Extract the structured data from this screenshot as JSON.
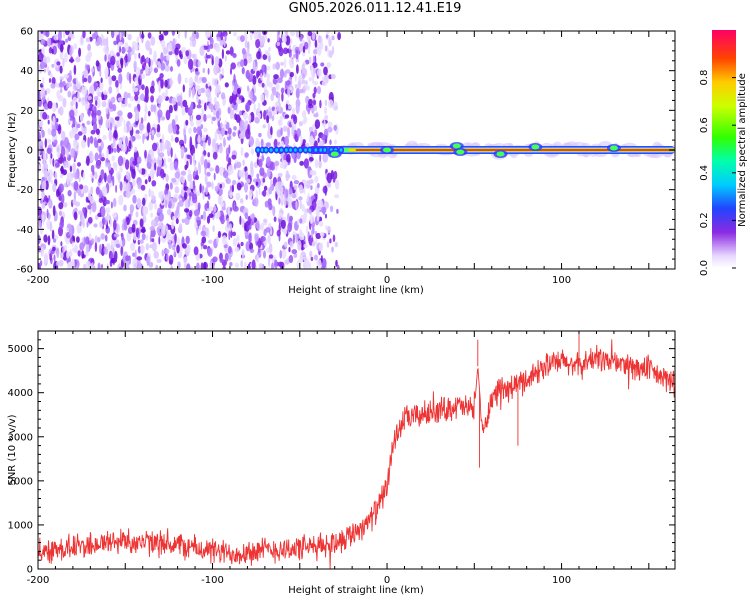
{
  "title": "GN05.2026.011.12.41.E19",
  "chart_data": [
    {
      "type": "heatmap",
      "xlabel": "Height of straight line (km)",
      "ylabel": "Frequency (Hz)",
      "xlim": [
        -200,
        165
      ],
      "ylim": [
        -60,
        60
      ],
      "x_ticks": [
        "-200",
        "-100",
        "0",
        "100"
      ],
      "y_ticks": [
        "60",
        "40",
        "20",
        "0",
        "-20",
        "-40",
        "-60"
      ],
      "colorbar": {
        "label": "Normalized spectral amplitude",
        "range": [
          0,
          1
        ],
        "ticks": [
          "0.0",
          "0.2",
          "0.4",
          "0.6",
          "0.8"
        ]
      },
      "features": [
        {
          "name": "noise",
          "x_range": [
            -200,
            -25
          ],
          "y_range": [
            -60,
            60
          ],
          "amplitude": 0.05
        },
        {
          "name": "signal_band",
          "x_range": [
            -75,
            165
          ],
          "center_freq": 0,
          "amplitude": 1.0
        }
      ]
    },
    {
      "type": "line",
      "xlabel": "Height of straight line (km)",
      "ylabel": "SNR (10 * v/v)",
      "xlim": [
        -200,
        165
      ],
      "ylim": [
        0,
        5400
      ],
      "x_ticks": [
        "-200",
        "-100",
        "0",
        "100"
      ],
      "y_ticks": [
        "0",
        "1000",
        "2000",
        "3000",
        "4000",
        "5000"
      ],
      "color": "#ee3333",
      "series": [
        {
          "x": [
            -200,
            -180,
            -160,
            -150,
            -140,
            -120,
            -100,
            -90,
            -80,
            -60,
            -40,
            -30,
            -20,
            -10,
            -5,
            0,
            3,
            6,
            10,
            20,
            30,
            40,
            50,
            52,
            55,
            60,
            70,
            80,
            90,
            100,
            110,
            120,
            130,
            140,
            150,
            160,
            165
          ],
          "y": [
            400,
            500,
            600,
            650,
            600,
            550,
            400,
            350,
            400,
            450,
            500,
            600,
            800,
            1100,
            1400,
            1900,
            2600,
            3100,
            3400,
            3500,
            3600,
            3700,
            3600,
            4600,
            3000,
            3900,
            4100,
            4300,
            4600,
            4700,
            4600,
            4800,
            4700,
            4600,
            4500,
            4300,
            4200
          ]
        }
      ],
      "noise_amplitude": 250,
      "spikes": [
        {
          "x": 52,
          "y": 5200
        },
        {
          "x": 53,
          "y": 2300
        },
        {
          "x": 110,
          "y": 5350
        },
        {
          "x": 75,
          "y": 2800
        }
      ]
    }
  ]
}
